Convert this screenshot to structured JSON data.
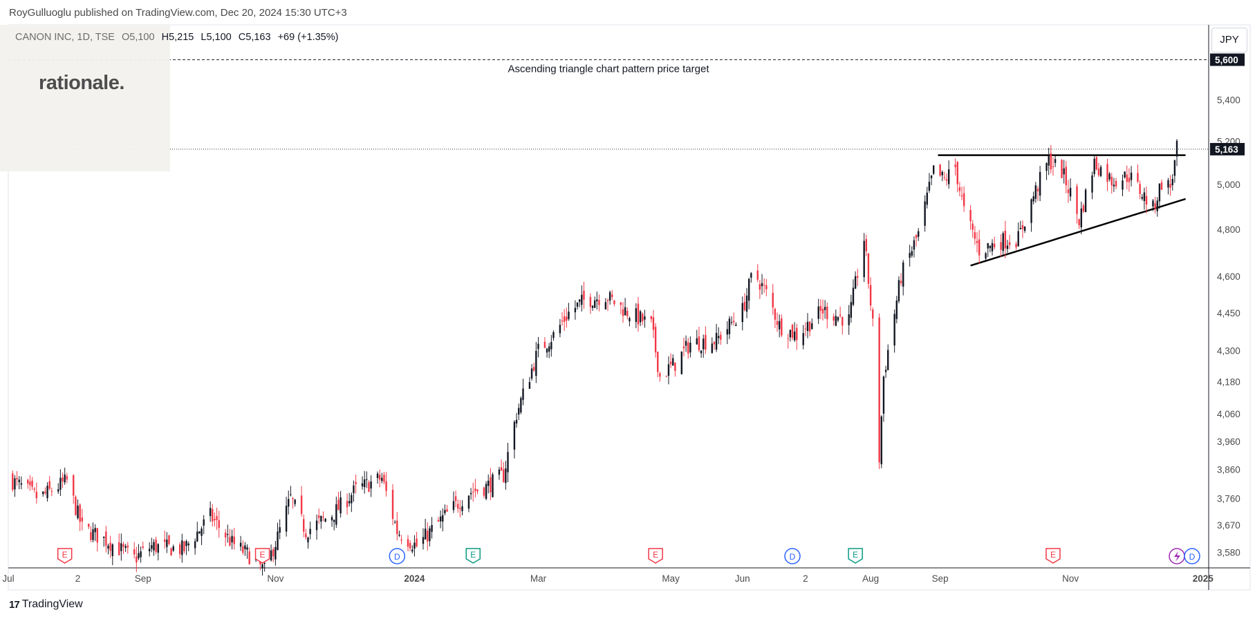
{
  "header": {
    "published_by": "RoyGulluoglu published on TradingView.com, Dec 20, 2024 15:30 UTC+3"
  },
  "symbol_bar": {
    "name": "CANON INC, 1D, TSE",
    "open": "O5,100",
    "high": "H5,215",
    "low": "L5,100",
    "close": "C5,163",
    "change": "+69 (+1.35%)"
  },
  "brand": "rationale.",
  "currency_button": "JPY",
  "footer": {
    "logo_text": "TradingView",
    "logo_mark": "17"
  },
  "colors": {
    "up": "#131722",
    "down": "#f23645",
    "event_earnings": "#f23645",
    "event_dividend": "#2962ff",
    "event_e_green": "#089981",
    "event_split": "#9c27b0"
  },
  "chart_data": {
    "type": "candlestick",
    "title": "",
    "ylim": [
      3530,
      5780
    ],
    "x_range": [
      "2023-07-01",
      "2025-01-03"
    ],
    "y_scale": "log",
    "y_ticks": [
      "5,400",
      "5,200",
      "5,000",
      "4,800",
      "4,600",
      "4,450",
      "4,300",
      "4,180",
      "4,060",
      "3,960",
      "3,860",
      "3,760",
      "3,670",
      "3,580"
    ],
    "y_tick_values": [
      5400,
      5200,
      5000,
      4800,
      4600,
      4450,
      4300,
      4180,
      4060,
      3960,
      3860,
      3760,
      3670,
      3580
    ],
    "x_ticks": [
      {
        "label": "Jul",
        "date": "2023-07-01",
        "bold": false
      },
      {
        "label": "2",
        "date": "2023-08-02",
        "bold": false
      },
      {
        "label": "Sep",
        "date": "2023-09-01",
        "bold": false
      },
      {
        "label": "Nov",
        "date": "2023-11-01",
        "bold": false
      },
      {
        "label": "2024",
        "date": "2024-01-04",
        "bold": true
      },
      {
        "label": "Mar",
        "date": "2024-03-01",
        "bold": false
      },
      {
        "label": "May",
        "date": "2024-05-01",
        "bold": false
      },
      {
        "label": "Jun",
        "date": "2024-06-03",
        "bold": false
      },
      {
        "label": "2",
        "date": "2024-07-02",
        "bold": false
      },
      {
        "label": "Aug",
        "date": "2024-08-01",
        "bold": false
      },
      {
        "label": "Sep",
        "date": "2024-09-02",
        "bold": false
      },
      {
        "label": "Nov",
        "date": "2024-11-01",
        "bold": false
      },
      {
        "label": "2025",
        "date": "2025-01-01",
        "bold": true
      }
    ],
    "price_target": {
      "value": 5600,
      "label": "5,600",
      "text": "Ascending triangle chart pattern price target"
    },
    "last_price": {
      "value": 5163,
      "label": "5,163"
    },
    "resistance": {
      "from": "2024-09-01",
      "to": "2024-12-24",
      "value": 5135
    },
    "support": {
      "from": [
        "2024-09-16",
        4645
      ],
      "to": [
        "2024-12-24",
        4935
      ]
    },
    "events": [
      {
        "type": "E",
        "date": "2023-07-27"
      },
      {
        "type": "E",
        "date": "2023-10-26"
      },
      {
        "type": "D",
        "date": "2023-12-27"
      },
      {
        "type": "E",
        "date": "2024-01-31"
      },
      {
        "type": "E",
        "date": "2024-04-24"
      },
      {
        "type": "D",
        "date": "2024-06-26"
      },
      {
        "type": "E",
        "date": "2024-07-25"
      },
      {
        "type": "E",
        "date": "2024-10-24"
      },
      {
        "type": "S",
        "date": "2024-12-20"
      },
      {
        "type": "D",
        "date": "2024-12-27"
      }
    ],
    "anchors": [
      [
        "2023-07-01",
        3830
      ],
      [
        "2023-07-15",
        3760
      ],
      [
        "2023-07-28",
        3820
      ],
      [
        "2023-08-04",
        3660
      ],
      [
        "2023-08-15",
        3620
      ],
      [
        "2023-08-28",
        3560
      ],
      [
        "2023-09-05",
        3600
      ],
      [
        "2023-09-20",
        3590
      ],
      [
        "2023-10-02",
        3700
      ],
      [
        "2023-10-12",
        3610
      ],
      [
        "2023-10-20",
        3570
      ],
      [
        "2023-10-27",
        3520
      ],
      [
        "2023-11-02",
        3630
      ],
      [
        "2023-11-08",
        3760
      ],
      [
        "2023-11-15",
        3650
      ],
      [
        "2023-11-28",
        3710
      ],
      [
        "2023-12-08",
        3790
      ],
      [
        "2023-12-20",
        3830
      ],
      [
        "2023-12-27",
        3650
      ],
      [
        "2024-01-05",
        3600
      ],
      [
        "2024-01-18",
        3700
      ],
      [
        "2024-01-29",
        3780
      ],
      [
        "2024-02-06",
        3800
      ],
      [
        "2024-02-14",
        3840
      ],
      [
        "2024-02-20",
        4060
      ],
      [
        "2024-03-01",
        4300
      ],
      [
        "2024-03-08",
        4360
      ],
      [
        "2024-03-15",
        4450
      ],
      [
        "2024-03-22",
        4500
      ],
      [
        "2024-04-01",
        4520
      ],
      [
        "2024-04-10",
        4460
      ],
      [
        "2024-04-22",
        4400
      ],
      [
        "2024-04-26",
        4200
      ],
      [
        "2024-05-03",
        4250
      ],
      [
        "2024-05-10",
        4330
      ],
      [
        "2024-05-22",
        4340
      ],
      [
        "2024-06-03",
        4460
      ],
      [
        "2024-06-08",
        4620
      ],
      [
        "2024-06-14",
        4530
      ],
      [
        "2024-06-20",
        4400
      ],
      [
        "2024-06-28",
        4360
      ],
      [
        "2024-07-10",
        4460
      ],
      [
        "2024-07-22",
        4420
      ],
      [
        "2024-07-29",
        4760
      ],
      [
        "2024-08-02",
        4400
      ],
      [
        "2024-08-05",
        3900
      ],
      [
        "2024-08-07",
        4200
      ],
      [
        "2024-08-15",
        4600
      ],
      [
        "2024-08-23",
        4780
      ],
      [
        "2024-08-30",
        5060
      ],
      [
        "2024-09-04",
        5020
      ],
      [
        "2024-09-09",
        5080
      ],
      [
        "2024-09-13",
        4880
      ],
      [
        "2024-09-20",
        4710
      ],
      [
        "2024-09-30",
        4750
      ],
      [
        "2024-10-08",
        4760
      ],
      [
        "2024-10-15",
        4950
      ],
      [
        "2024-10-22",
        5110
      ],
      [
        "2024-10-28",
        5060
      ],
      [
        "2024-11-01",
        4960
      ],
      [
        "2024-11-05",
        4840
      ],
      [
        "2024-11-12",
        5100
      ],
      [
        "2024-11-20",
        5020
      ],
      [
        "2024-11-28",
        5040
      ],
      [
        "2024-12-04",
        4960
      ],
      [
        "2024-12-09",
        4890
      ],
      [
        "2024-12-13",
        5010
      ],
      [
        "2024-12-17",
        4990
      ],
      [
        "2024-12-19",
        5094
      ],
      [
        "2024-12-20",
        5163
      ]
    ],
    "grid": false,
    "legend": "none"
  }
}
